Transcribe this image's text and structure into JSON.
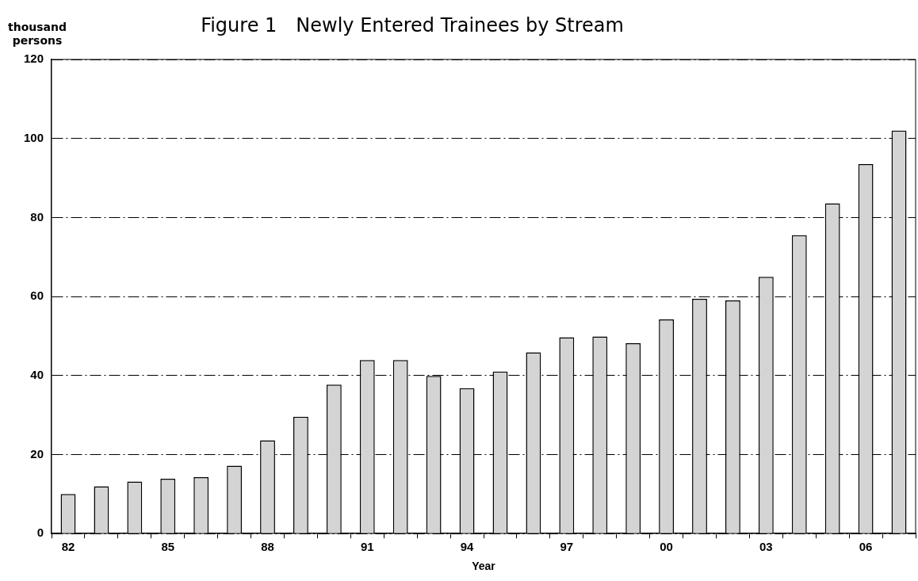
{
  "chart_data": {
    "type": "bar",
    "title": "Figure 1　Newly Entered Trainees by Stream",
    "ylabel": "thousand persons",
    "xlabel": "Year",
    "categories": [
      "82",
      null,
      null,
      "85",
      null,
      null,
      "88",
      null,
      null,
      "91",
      null,
      null,
      "94",
      null,
      null,
      "97",
      null,
      null,
      "00",
      null,
      null,
      "03",
      null,
      null,
      "06",
      null
    ],
    "values": [
      10,
      12,
      13.2,
      13.9,
      14.3,
      17.2,
      23.6,
      29.6,
      37.7,
      43.9,
      43.9,
      39.9,
      36.8,
      41,
      45.9,
      49.7,
      49.9,
      48.2,
      54.2,
      59.4,
      59,
      65,
      75.5,
      83.6,
      93.5,
      102
    ],
    "color": "#d4d4d4",
    "ylim": [
      0,
      120
    ],
    "yticks": [
      0,
      20,
      40,
      60,
      80,
      100,
      120
    ],
    "grid": "y",
    "legend": false
  }
}
